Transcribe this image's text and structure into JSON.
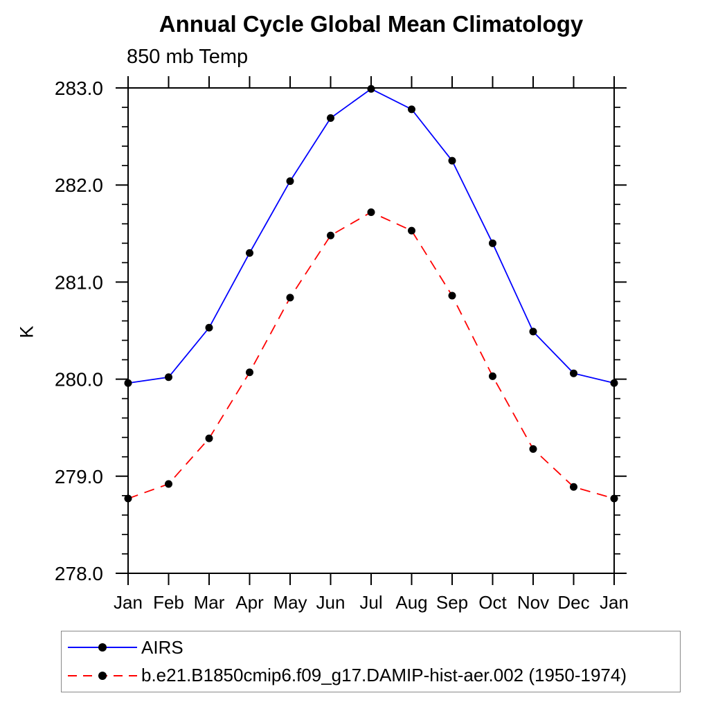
{
  "chart_data": {
    "type": "line",
    "title": "Annual Cycle Global Mean Climatology",
    "subtitle": "850 mb Temp",
    "ylabel": "K",
    "xlabel": "",
    "categories": [
      "Jan",
      "Feb",
      "Mar",
      "Apr",
      "May",
      "Jun",
      "Jul",
      "Aug",
      "Sep",
      "Oct",
      "Nov",
      "Dec",
      "Jan"
    ],
    "ylim": [
      278.0,
      283.0
    ],
    "yticks": [
      278,
      279,
      280,
      281,
      282,
      283
    ],
    "ytick_labels": [
      "278.0",
      "279.0",
      "280.0",
      "281.0",
      "282.0",
      "283.0"
    ],
    "yminor_interval": 0.2,
    "grid": false,
    "legend_position": "bottom-left framed box",
    "axis_color": "#000000",
    "marker": {
      "shape": "filled-circle",
      "color": "#000000",
      "radius": 5.5
    },
    "series": [
      {
        "name": "AIRS",
        "color": "#0000ff",
        "line_style": "solid",
        "values": [
          279.96,
          280.02,
          280.53,
          281.3,
          282.04,
          282.69,
          282.99,
          282.78,
          282.25,
          281.4,
          280.49,
          280.06,
          279.96
        ]
      },
      {
        "name": "b.e21.B1850cmip6.f09_g17.DAMIP-hist-aer.002 (1950-1974)",
        "color": "#ff0000",
        "line_style": "dashed",
        "values": [
          278.77,
          278.92,
          279.39,
          280.07,
          280.84,
          281.48,
          281.72,
          281.53,
          280.86,
          280.03,
          279.28,
          278.89,
          278.77
        ]
      }
    ]
  }
}
